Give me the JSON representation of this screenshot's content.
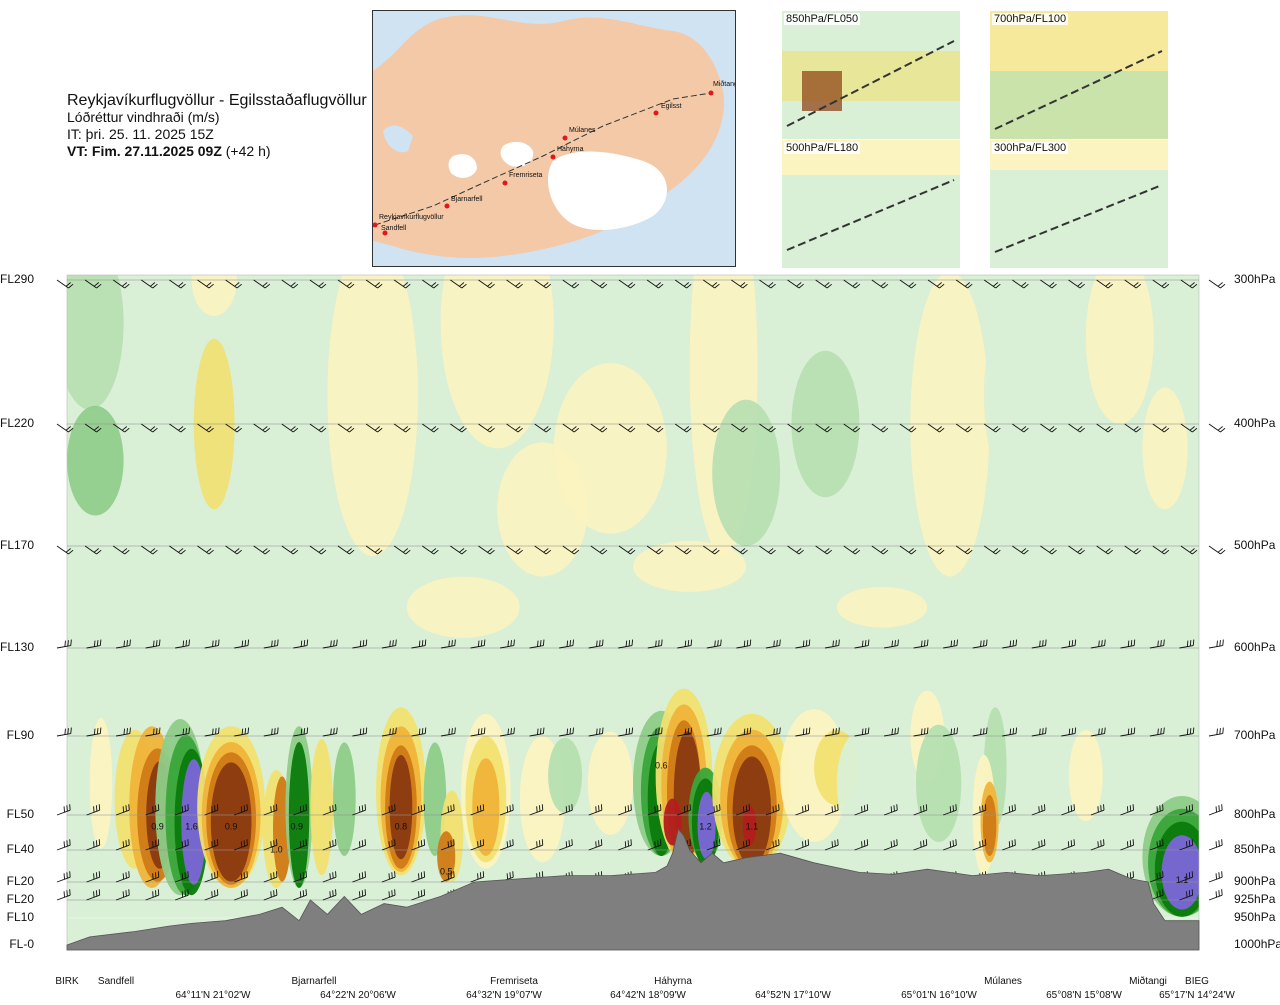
{
  "header": {
    "title": "Reykjavíkurflugvöllur - Egilsstaðaflugvöllur",
    "parameter": "Lóðréttur vindhraði (m/s)",
    "issue_time": "IT: þri. 25. 11. 2025 15Z",
    "valid_prefix": "VT: Fim. 27.11.2025 09Z",
    "valid_suffix": "(+42 h)"
  },
  "map": {
    "stations": [
      {
        "name": "Reykjavíkurflugvöllur"
      },
      {
        "name": "Sandfell"
      },
      {
        "name": "Bjarnarfell"
      },
      {
        "name": "Fremriseta"
      },
      {
        "name": "Háhyrna"
      },
      {
        "name": "Múlanes"
      },
      {
        "name": "Egilsst"
      },
      {
        "name": "Miðtangi"
      }
    ],
    "colors": {
      "land": "#f3c9a8",
      "sea": "#cfe3f3",
      "ice": "#ffffff",
      "route": "#333333",
      "station": "#e3161b"
    }
  },
  "mini_panels": [
    {
      "label": "850hPa/FL050"
    },
    {
      "label": "700hPa/FL100"
    },
    {
      "label": "500hPa/FL180"
    },
    {
      "label": "300hPa/FL300"
    }
  ],
  "chart_data": {
    "type": "heatmap",
    "title": "Lóðréttur vindhraði (m/s)",
    "left_axis_flight_levels": [
      "FL290",
      "FL220",
      "FL170",
      "FL130",
      "FL90",
      "FL50",
      "FL40",
      "FL20",
      "FL20",
      "FL10",
      "FL-0"
    ],
    "right_axis_pressure": [
      "300hPa",
      "400hPa",
      "500hPa",
      "600hPa",
      "700hPa",
      "800hPa",
      "850hPa",
      "900hPa",
      "925hPa",
      "950hPa",
      "1000hPa"
    ],
    "pressure_levels_hpa": [
      300,
      400,
      500,
      600,
      700,
      800,
      850,
      900,
      925,
      950,
      1000
    ],
    "wind_barb_rows_hpa": [
      300,
      400,
      500,
      600,
      700,
      800,
      850,
      900,
      925
    ],
    "bottom_stations": [
      "BIRK",
      "Sandfell",
      "Bjarnarfell",
      "Fremriseta",
      "Háhyrna",
      "Múlanes",
      "Miðtangi",
      "BIEG"
    ],
    "bottom_coords": [
      "64°11'N 21°02'W",
      "64°22'N 20°06'W",
      "64°32'N 19°07'W",
      "64°42'N 18°09'W",
      "64°52'N 17°10'W",
      "65°01'N 16°10'W",
      "65°08'N 15°08'W",
      "65°17'N 14°24'W"
    ],
    "cell_labels": [
      {
        "text": "0.9",
        "x": 0.08,
        "p": 815
      },
      {
        "text": "1.6",
        "x": 0.11,
        "p": 815
      },
      {
        "text": "0.9",
        "x": 0.145,
        "p": 815
      },
      {
        "text": "1.0",
        "x": 0.185,
        "p": 848
      },
      {
        "text": "0.9",
        "x": 0.203,
        "p": 815
      },
      {
        "text": "0.8",
        "x": 0.295,
        "p": 815
      },
      {
        "text": "0.5",
        "x": 0.335,
        "p": 882
      },
      {
        "text": "0.6",
        "x": 0.525,
        "p": 736
      },
      {
        "text": "1.2",
        "x": 0.564,
        "p": 815
      },
      {
        "text": "1.1",
        "x": 0.605,
        "p": 815
      },
      {
        "text": "1.1",
        "x": 0.985,
        "p": 895
      }
    ],
    "color_scale": [
      "#d9efd6",
      "#b6dfb0",
      "#8ecc88",
      "#3aa53a",
      "#0b7a0b",
      "#fbf3c0",
      "#f2e070",
      "#f0b43a",
      "#d07a16",
      "#8a3a10",
      "#b21e1e",
      "#7b66d9"
    ]
  }
}
